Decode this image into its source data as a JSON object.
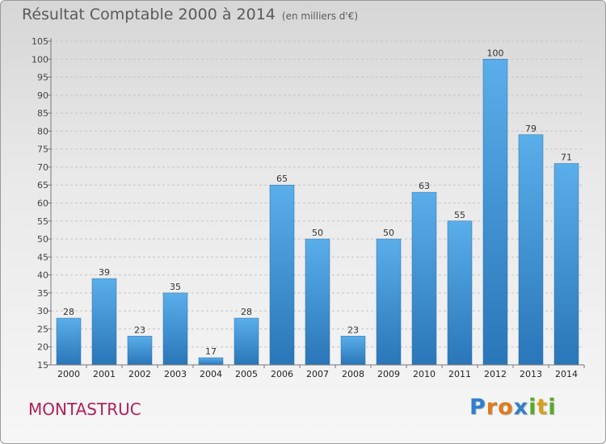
{
  "chart_data": {
    "type": "bar",
    "title": "Résultat Comptable 2000 à 2014",
    "subtitle": "(en milliers d'€)",
    "categories": [
      "2000",
      "2001",
      "2002",
      "2003",
      "2004",
      "2005",
      "2006",
      "2007",
      "2008",
      "2009",
      "2010",
      "2011",
      "2012",
      "2013",
      "2014"
    ],
    "values": [
      28,
      39,
      23,
      35,
      17,
      28,
      65,
      50,
      23,
      50,
      63,
      55,
      100,
      79,
      71
    ],
    "ylim": [
      15,
      105
    ],
    "yticks": [
      "15",
      "20",
      "25",
      "30",
      "35",
      "40",
      "45",
      "50",
      "55",
      "60",
      "65",
      "70",
      "75",
      "80",
      "85",
      "90",
      "95",
      "100",
      "105"
    ],
    "grid": true,
    "bar_color": "#3f93d6"
  },
  "town": "MONTASTRUC",
  "logo": {
    "letters": [
      {
        "ch": "P",
        "color": "#2e7fd0"
      },
      {
        "ch": "r",
        "color": "#e07a1e"
      },
      {
        "ch": "o",
        "color": "#e07a1e"
      },
      {
        "ch": "x",
        "color": "#2e7fd0"
      },
      {
        "ch": "i",
        "color": "#5aaa2a"
      },
      {
        "ch": "t",
        "color": "#d9a11a"
      },
      {
        "ch": "i",
        "color": "#5aaa2a"
      }
    ]
  }
}
